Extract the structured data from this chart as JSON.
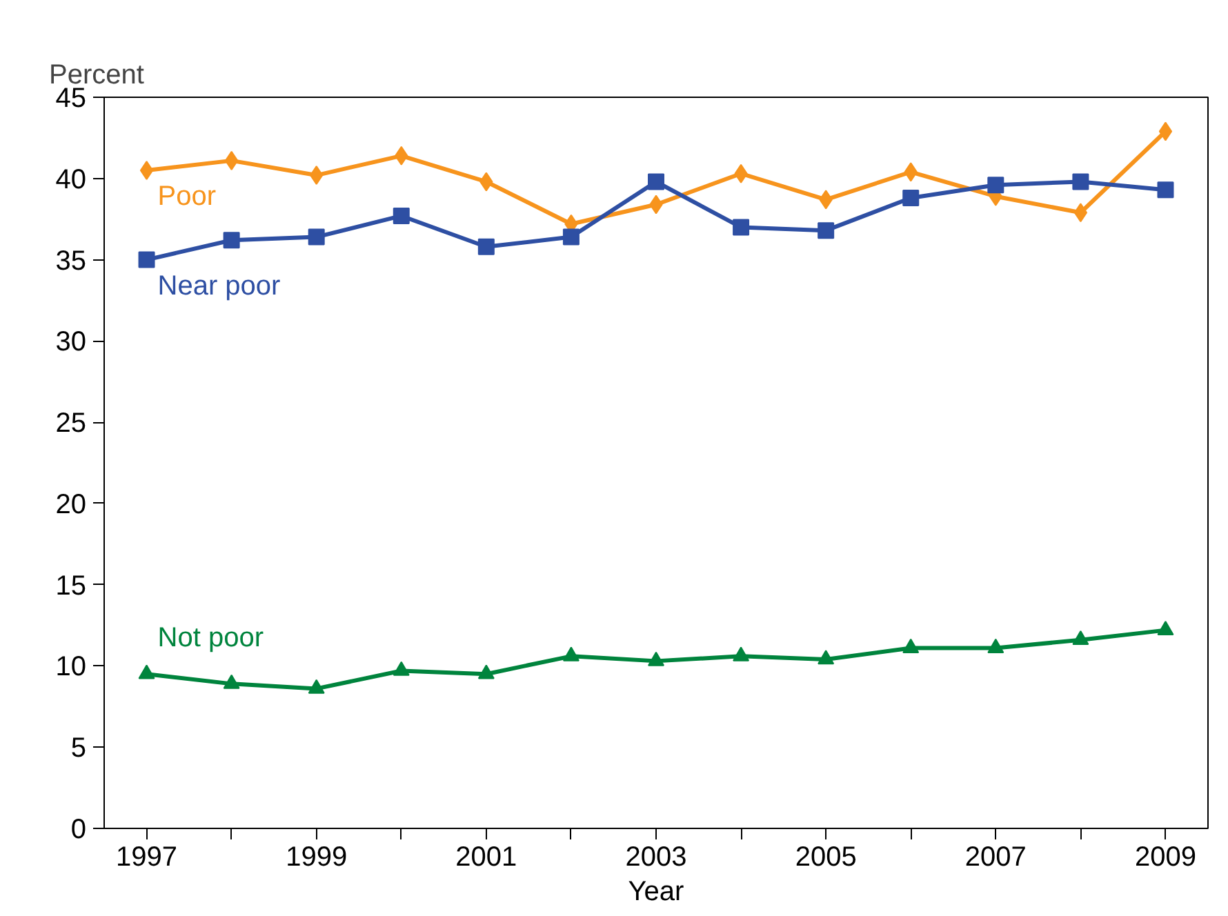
{
  "chart_data": {
    "type": "line",
    "xlabel": "Year",
    "ylabel": "Percent",
    "x": [
      1997,
      1998,
      1999,
      2000,
      2001,
      2002,
      2003,
      2004,
      2005,
      2006,
      2007,
      2008,
      2009
    ],
    "series": [
      {
        "name": "Poor",
        "color": "#f7941d",
        "marker": "diamond",
        "values": [
          40.5,
          41.1,
          40.2,
          41.4,
          39.8,
          37.2,
          38.4,
          40.3,
          38.7,
          40.4,
          38.9,
          37.9,
          42.9
        ]
      },
      {
        "name": "Near poor",
        "color": "#2e4fa3",
        "marker": "square",
        "values": [
          35.0,
          36.2,
          36.4,
          37.7,
          35.8,
          36.4,
          39.8,
          37.0,
          36.8,
          38.8,
          39.6,
          39.8,
          39.3
        ]
      },
      {
        "name": "Not poor",
        "color": "#00843d",
        "marker": "triangle",
        "values": [
          9.5,
          8.9,
          8.6,
          9.7,
          9.5,
          10.6,
          10.3,
          10.6,
          10.4,
          11.1,
          11.1,
          11.6,
          12.2
        ]
      }
    ],
    "xlim": [
      1996.5,
      2009.5
    ],
    "xticks": [
      1997,
      {
        "value": 1998,
        "label": null
      },
      1999,
      {
        "value": 2000,
        "label": null
      },
      2001,
      {
        "value": 2002,
        "label": null
      },
      2003,
      {
        "value": 2004,
        "label": null
      },
      2005,
      {
        "value": 2006,
        "label": null
      },
      2007,
      {
        "value": 2008,
        "label": null
      },
      2009
    ],
    "ylim": [
      0,
      45
    ],
    "yticks": [
      0,
      5,
      10,
      15,
      20,
      25,
      30,
      35,
      40,
      45
    ],
    "grid": false,
    "line_style": "solid"
  }
}
